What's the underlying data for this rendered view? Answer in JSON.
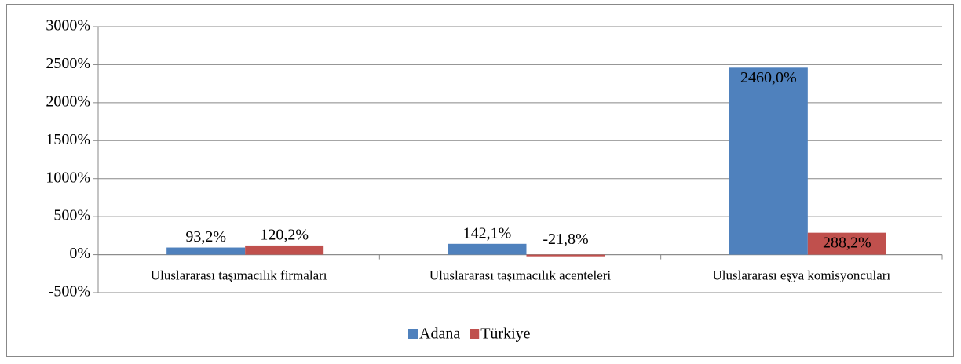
{
  "chart_data": {
    "type": "bar",
    "categories": [
      "Uluslararası taşımacılık firmaları",
      "Uluslararası taşımacılık acenteleri",
      "Uluslararası eşya komisyoncuları"
    ],
    "series": [
      {
        "name": "Adana",
        "color": "#4f81bd",
        "values": [
          93.2,
          142.1,
          2460.0
        ],
        "value_labels": [
          "93,2%",
          "142,1%",
          "2460,0%"
        ]
      },
      {
        "name": "Türkiye",
        "color": "#c0504d",
        "values": [
          120.2,
          -21.8,
          288.2
        ],
        "value_labels": [
          "120,2%",
          "-21,8%",
          "288,2%"
        ]
      }
    ],
    "ylim": [
      -500,
      3000
    ],
    "yticks": [
      {
        "value": -500,
        "label": "-500%"
      },
      {
        "value": 0,
        "label": "0%"
      },
      {
        "value": 500,
        "label": "500%"
      },
      {
        "value": 1000,
        "label": "1000%"
      },
      {
        "value": 1500,
        "label": "1500%"
      },
      {
        "value": 2000,
        "label": "2000%"
      },
      {
        "value": 2500,
        "label": "2500%"
      },
      {
        "value": 3000,
        "label": "3000%"
      }
    ],
    "grid": true,
    "legend": "bottom"
  }
}
